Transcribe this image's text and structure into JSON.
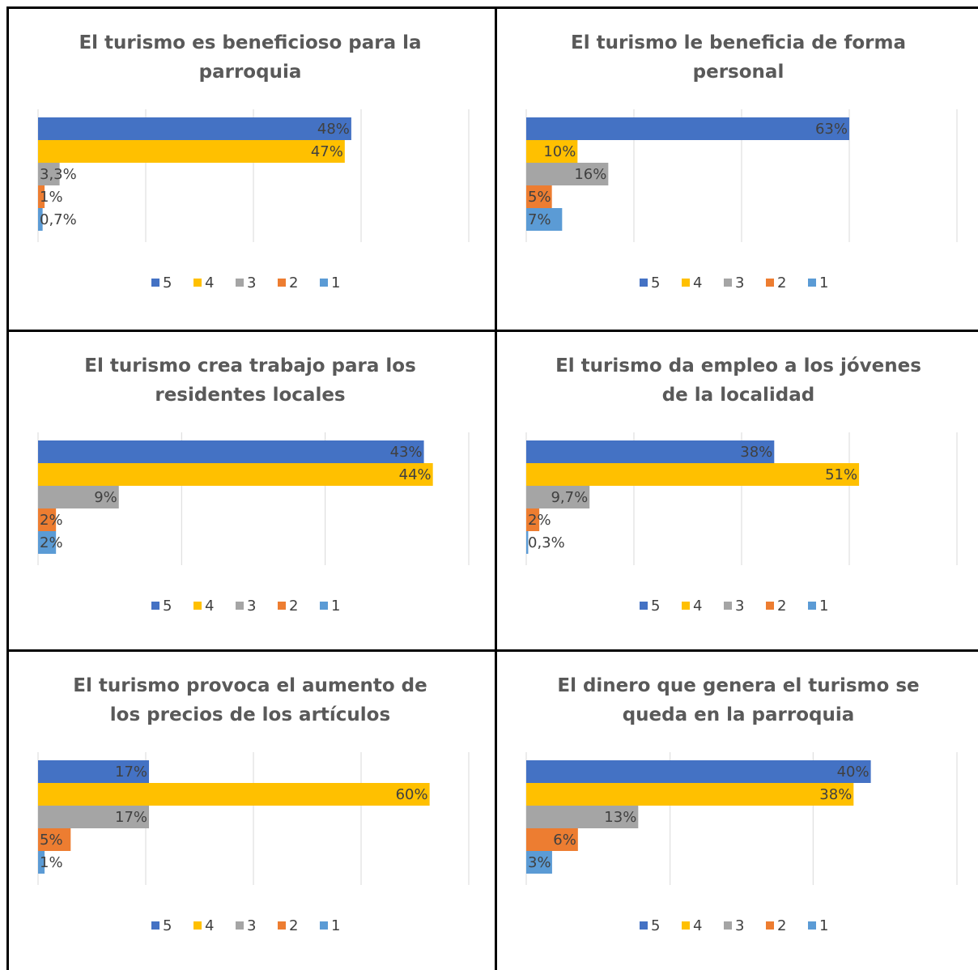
{
  "chart_data": [
    {
      "type": "bar",
      "orientation": "horizontal",
      "title": "El turismo es beneficioso para la parroquia",
      "series": [
        {
          "name": "5",
          "color": "#4472c4",
          "values": [
            48
          ],
          "value_labels": [
            "48%"
          ]
        },
        {
          "name": "4",
          "color": "#ffc000",
          "values": [
            47
          ],
          "value_labels": [
            "47%"
          ]
        },
        {
          "name": "3",
          "color": "#a5a5a5",
          "values": [
            3.3
          ],
          "value_labels": [
            "3,3%"
          ]
        },
        {
          "name": "2",
          "color": "#ed7d31",
          "values": [
            1
          ],
          "value_labels": [
            "1%"
          ]
        },
        {
          "name": "1",
          "color": "#5b9bd5",
          "values": [
            0.7
          ],
          "value_labels": [
            "0,7%"
          ]
        }
      ],
      "xlim": [
        0,
        66
      ],
      "xticks": [
        0,
        16.5,
        33,
        49.5,
        66
      ],
      "grid": true,
      "legend": "bottom"
    },
    {
      "type": "bar",
      "orientation": "horizontal",
      "title": "El turismo le beneficia de forma personal",
      "series": [
        {
          "name": "5",
          "color": "#4472c4",
          "values": [
            63
          ],
          "value_labels": [
            "63%"
          ]
        },
        {
          "name": "4",
          "color": "#ffc000",
          "values": [
            10
          ],
          "value_labels": [
            "10%"
          ]
        },
        {
          "name": "3",
          "color": "#a5a5a5",
          "values": [
            16
          ],
          "value_labels": [
            "16%"
          ]
        },
        {
          "name": "2",
          "color": "#ed7d31",
          "values": [
            5
          ],
          "value_labels": [
            "5%"
          ]
        },
        {
          "name": "1",
          "color": "#5b9bd5",
          "values": [
            7
          ],
          "value_labels": [
            "7%"
          ]
        }
      ],
      "xlim": [
        0,
        84
      ],
      "xticks": [
        0,
        21,
        42,
        63,
        84
      ],
      "grid": true,
      "legend": "bottom"
    },
    {
      "type": "bar",
      "orientation": "horizontal",
      "title": "El turismo crea trabajo para los residentes locales",
      "series": [
        {
          "name": "5",
          "color": "#4472c4",
          "values": [
            43
          ],
          "value_labels": [
            "43%"
          ]
        },
        {
          "name": "4",
          "color": "#ffc000",
          "values": [
            44
          ],
          "value_labels": [
            "44%"
          ]
        },
        {
          "name": "3",
          "color": "#a5a5a5",
          "values": [
            9
          ],
          "value_labels": [
            "9%"
          ]
        },
        {
          "name": "2",
          "color": "#ed7d31",
          "values": [
            2
          ],
          "value_labels": [
            "2%"
          ]
        },
        {
          "name": "1",
          "color": "#5b9bd5",
          "values": [
            2
          ],
          "value_labels": [
            "2%"
          ]
        }
      ],
      "xlim": [
        0,
        48
      ],
      "xticks": [
        0,
        16,
        32,
        48
      ],
      "grid": true,
      "legend": "bottom"
    },
    {
      "type": "bar",
      "orientation": "horizontal",
      "title": "El turismo da empleo a los jóvenes de la localidad",
      "series": [
        {
          "name": "5",
          "color": "#4472c4",
          "values": [
            38
          ],
          "value_labels": [
            "38%"
          ]
        },
        {
          "name": "4",
          "color": "#ffc000",
          "values": [
            51
          ],
          "value_labels": [
            "51%"
          ]
        },
        {
          "name": "3",
          "color": "#a5a5a5",
          "values": [
            9.7
          ],
          "value_labels": [
            "9,7%"
          ]
        },
        {
          "name": "2",
          "color": "#ed7d31",
          "values": [
            2
          ],
          "value_labels": [
            "2%"
          ]
        },
        {
          "name": "1",
          "color": "#5b9bd5",
          "values": [
            0.3
          ],
          "value_labels": [
            "0,3%"
          ]
        }
      ],
      "xlim": [
        0,
        66
      ],
      "xticks": [
        0,
        16.5,
        33,
        49.5,
        66
      ],
      "grid": true,
      "legend": "bottom"
    },
    {
      "type": "bar",
      "orientation": "horizontal",
      "title": "El turismo provoca el aumento de los precios de los artículos",
      "series": [
        {
          "name": "5",
          "color": "#4472c4",
          "values": [
            17
          ],
          "value_labels": [
            "17%"
          ]
        },
        {
          "name": "4",
          "color": "#ffc000",
          "values": [
            60
          ],
          "value_labels": [
            "60%"
          ]
        },
        {
          "name": "3",
          "color": "#a5a5a5",
          "values": [
            17
          ],
          "value_labels": [
            "17%"
          ]
        },
        {
          "name": "2",
          "color": "#ed7d31",
          "values": [
            5
          ],
          "value_labels": [
            "5%"
          ]
        },
        {
          "name": "1",
          "color": "#5b9bd5",
          "values": [
            1
          ],
          "value_labels": [
            "1%"
          ]
        }
      ],
      "xlim": [
        0,
        66
      ],
      "xticks": [
        0,
        16.5,
        33,
        49.5,
        66
      ],
      "grid": true,
      "legend": "bottom"
    },
    {
      "type": "bar",
      "orientation": "horizontal",
      "title": "El dinero que genera el turismo se queda en la parroquia",
      "series": [
        {
          "name": "5",
          "color": "#4472c4",
          "values": [
            40
          ],
          "value_labels": [
            "40%"
          ]
        },
        {
          "name": "4",
          "color": "#ffc000",
          "values": [
            38
          ],
          "value_labels": [
            "38%"
          ]
        },
        {
          "name": "3",
          "color": "#a5a5a5",
          "values": [
            13
          ],
          "value_labels": [
            "13%"
          ]
        },
        {
          "name": "2",
          "color": "#ed7d31",
          "values": [
            6
          ],
          "value_labels": [
            "6%"
          ]
        },
        {
          "name": "1",
          "color": "#5b9bd5",
          "values": [
            3
          ],
          "value_labels": [
            "3%"
          ]
        }
      ],
      "xlim": [
        0,
        50
      ],
      "xticks": [
        0,
        16.7,
        33.3,
        50
      ],
      "grid": true,
      "legend": "bottom"
    }
  ]
}
